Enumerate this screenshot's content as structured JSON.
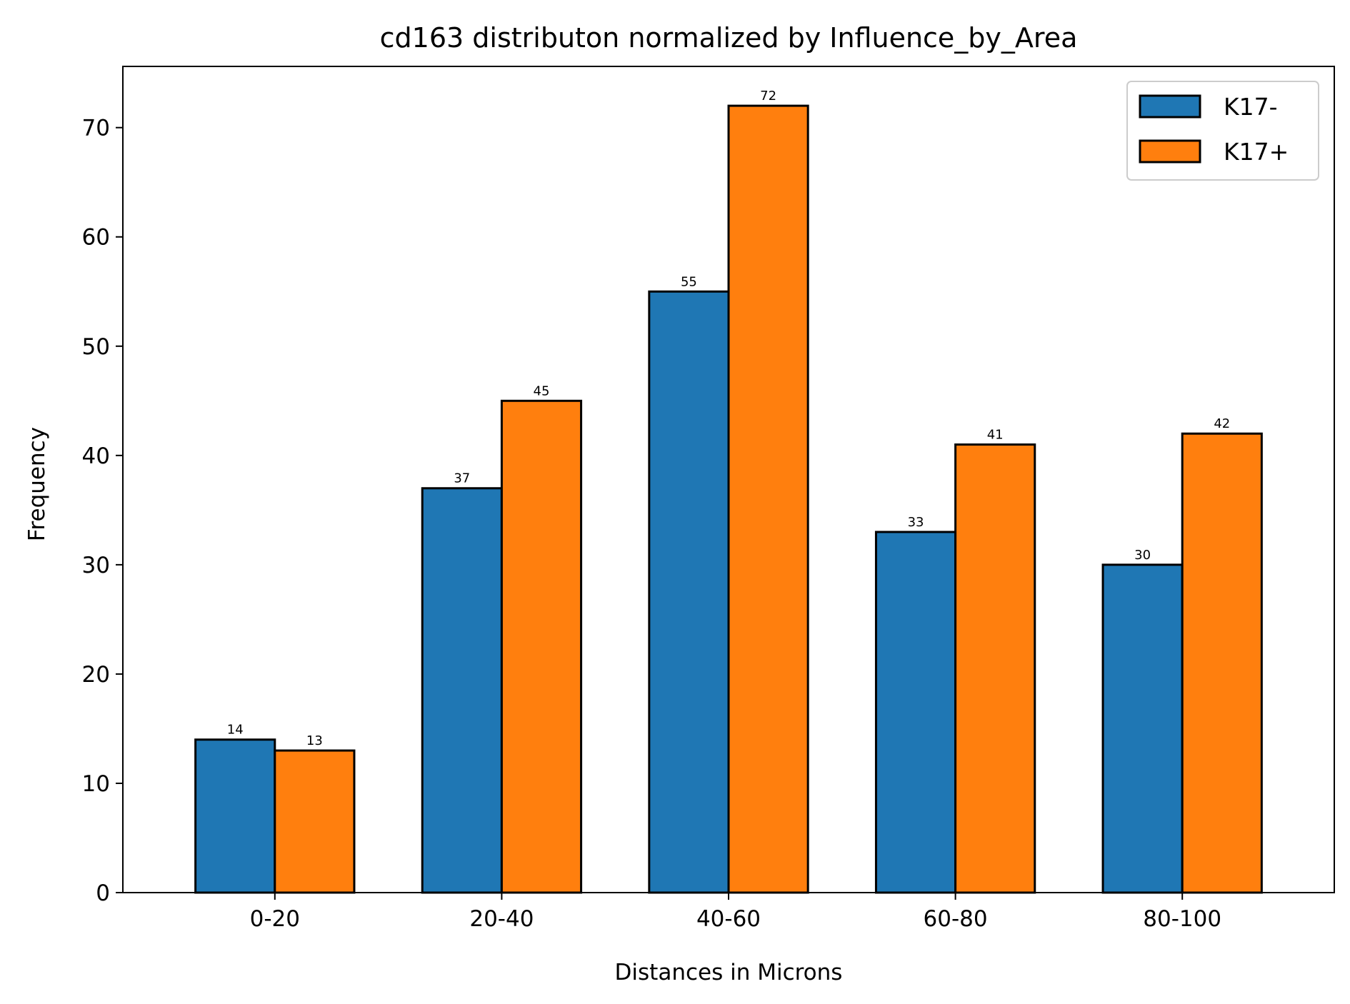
{
  "chart_data": {
    "type": "bar",
    "title": "cd163 distributon normalized by Influence_by_Area",
    "xlabel": "Distances in Microns",
    "ylabel": "Frequency",
    "categories": [
      "0-20",
      "20-40",
      "40-60",
      "60-80",
      "80-100"
    ],
    "series": [
      {
        "name": "K17-",
        "values": [
          14,
          37,
          55,
          33,
          30
        ],
        "color": "#1f77b4"
      },
      {
        "name": "K17+",
        "values": [
          13,
          45,
          72,
          41,
          42
        ],
        "color": "#ff7f0e"
      }
    ],
    "ylim": [
      0,
      75.6
    ],
    "yticks": [
      0,
      10,
      20,
      30,
      40,
      50,
      60,
      70
    ],
    "grid": false,
    "legend_position": "top-right",
    "data_labels": true
  }
}
